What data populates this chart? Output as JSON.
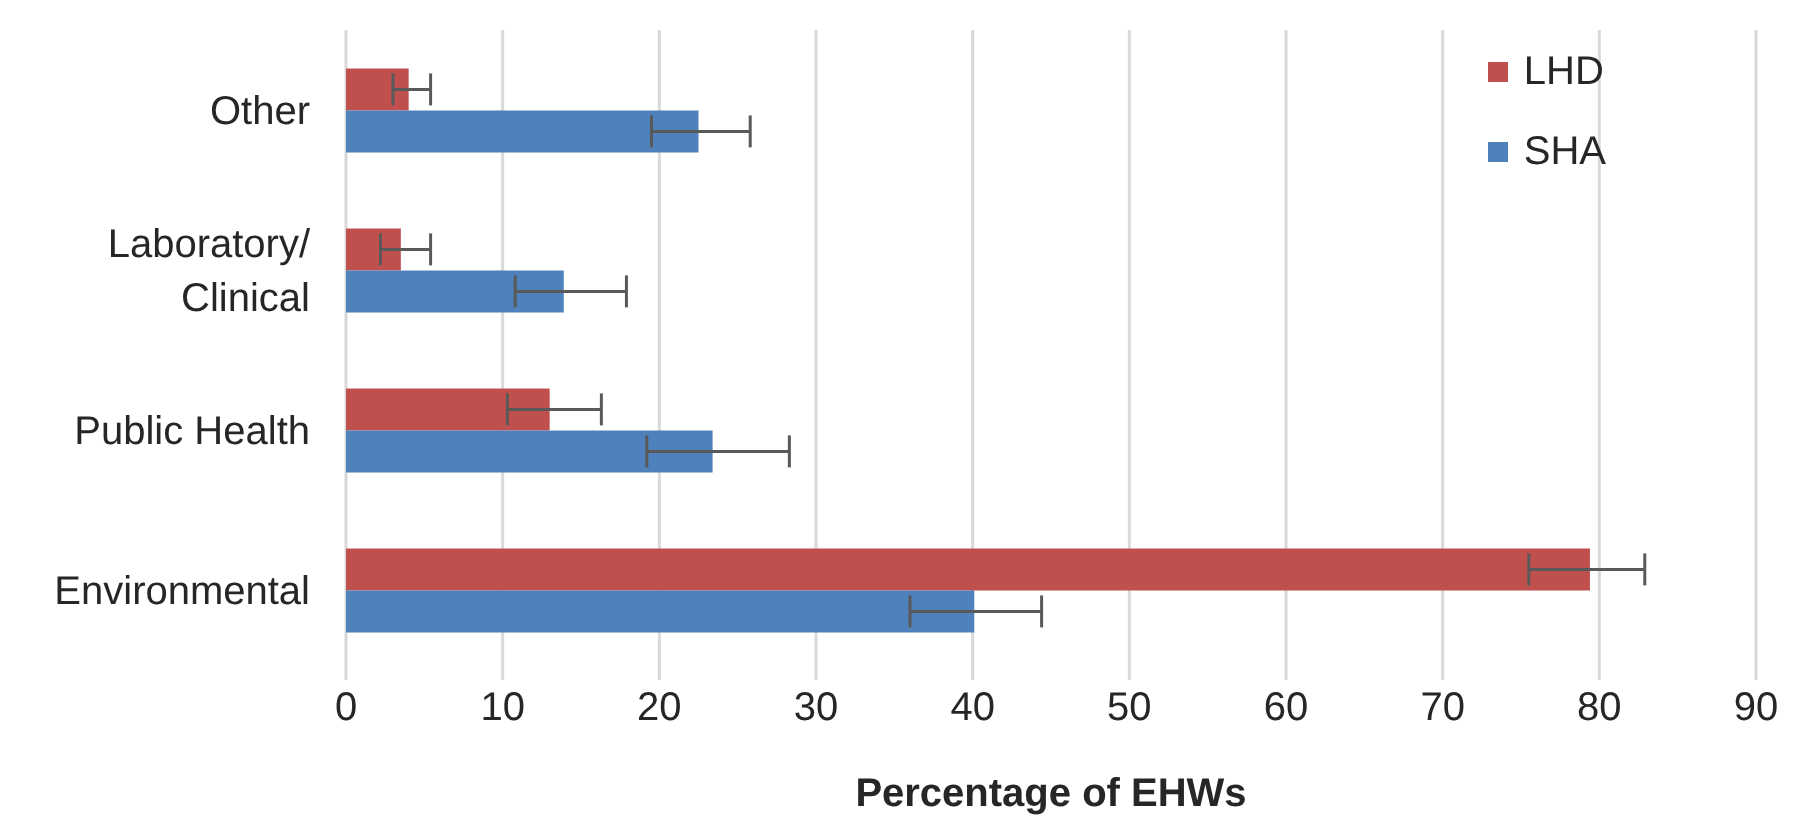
{
  "chart_data": {
    "type": "bar",
    "orientation": "horizontal",
    "categories": [
      "Other",
      "Laboratory/\nClinical",
      "Public Health",
      "Environmental"
    ],
    "series": [
      {
        "name": "LHD",
        "color": "#c0504d",
        "values": [
          4.0,
          3.5,
          13.0,
          79.4
        ],
        "errors": [
          [
            3.0,
            5.4
          ],
          [
            2.2,
            5.4
          ],
          [
            10.3,
            16.3
          ],
          [
            75.5,
            82.9
          ]
        ]
      },
      {
        "name": "SHA",
        "color": "#4f81bd",
        "values": [
          22.5,
          13.9,
          23.4,
          40.1
        ],
        "errors": [
          [
            19.5,
            25.8
          ],
          [
            10.8,
            17.9
          ],
          [
            19.2,
            28.3
          ],
          [
            36.0,
            44.4
          ]
        ]
      }
    ],
    "xlabel": "Percentage of EHWs",
    "xlim": [
      0,
      90
    ],
    "xticks": [
      0,
      10,
      20,
      30,
      40,
      50,
      60,
      70,
      80,
      90
    ],
    "grid": "x",
    "legend": "top right"
  }
}
